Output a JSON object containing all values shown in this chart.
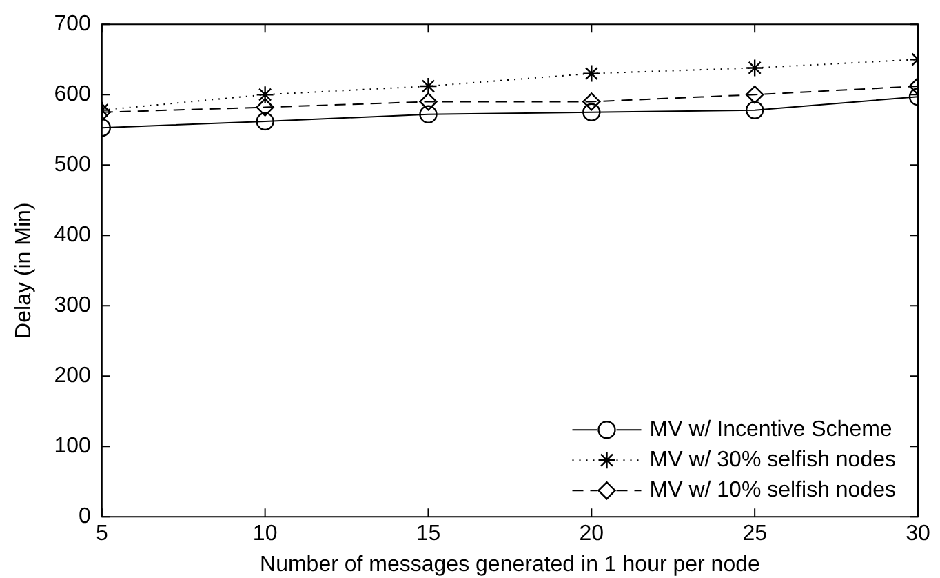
{
  "chart_data": {
    "type": "line",
    "xlabel": "Number of messages generated in 1 hour per node",
    "ylabel": "Delay (in Min)",
    "x": [
      5,
      10,
      15,
      20,
      25,
      30
    ],
    "xlim": [
      5,
      30
    ],
    "xticks": [
      5,
      10,
      15,
      20,
      25,
      30
    ],
    "ylim": [
      0,
      700
    ],
    "yticks": [
      0,
      100,
      200,
      300,
      400,
      500,
      600,
      700
    ],
    "grid": false,
    "legend": "bottom right",
    "series": [
      {
        "name": "MV w/ Incentive Scheme",
        "color": "#000000",
        "marker": "circle",
        "line_style": "solid",
        "values": [
          553,
          562,
          572,
          575,
          578,
          597
        ]
      },
      {
        "name": "MV w/ 30% selfish nodes",
        "color": "#000000",
        "marker": "cross",
        "line_style": "dotted",
        "values": [
          578,
          600,
          612,
          630,
          638,
          650
        ]
      },
      {
        "name": "MV w/ 10% selfish nodes",
        "color": "#000000",
        "marker": "diamond",
        "line_style": "dashed",
        "values": [
          575,
          582,
          590,
          590,
          600,
          612
        ]
      }
    ]
  }
}
